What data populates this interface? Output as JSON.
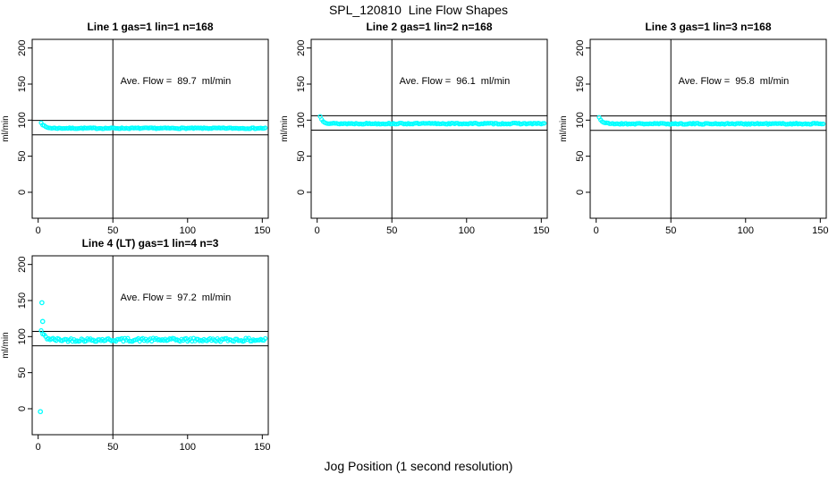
{
  "main_title": "SPL_120810  Line Flow Shapes",
  "xlabel": "Jog Position (1 second resolution)",
  "colors": {
    "point": "#00FFFF",
    "line": "#000000",
    "background": "#FFFFFF",
    "text": "#000000"
  },
  "chart_data": {
    "type": "scatter",
    "layout": "4 panels in 2x3 grid (3 top, 1 bottom-left), shared axis style",
    "point_style": "open cyan circles",
    "xlabel": "Jog Position (1 second resolution)",
    "ylabel": "ml/min",
    "shared_axes": {
      "xlim": [
        -4,
        154
      ],
      "ylim": [
        -36,
        212
      ],
      "xticks": [
        0,
        50,
        100,
        150
      ],
      "yticks": [
        0,
        50,
        100,
        150,
        200
      ],
      "vline_x": 50,
      "grid": false
    },
    "annotation_position": {
      "x": 92,
      "y": 150
    },
    "panels": [
      {
        "title": "Line 1 gas=1 lin=1 n=168",
        "annotation": "Ave. Flow =  89.7  ml/min",
        "ave_flow": 89.7,
        "n": 168,
        "hlines": [
          99.7,
          79.7
        ],
        "vline": 50,
        "series": {
          "x_start": 2,
          "x_end": 152,
          "x_step": 1,
          "start_value": 97,
          "steady_value": 88.8,
          "decay_tau": 2.0,
          "noise": 0.7,
          "seed": 7
        },
        "extra_points": []
      },
      {
        "title": "Line 2 gas=1 lin=2 n=168",
        "annotation": "Ave. Flow =  96.1  ml/min",
        "ave_flow": 96.1,
        "n": 168,
        "hlines": [
          106.1,
          86.1
        ],
        "vline": 50,
        "series": {
          "x_start": 2,
          "x_end": 152,
          "x_step": 1,
          "start_value": 105,
          "steady_value": 95.2,
          "decay_tau": 2.0,
          "noise": 0.8,
          "seed": 13
        },
        "extra_points": []
      },
      {
        "title": "Line 3 gas=1 lin=3 n=168",
        "annotation": "Ave. Flow =  95.8  ml/min",
        "ave_flow": 95.8,
        "n": 168,
        "hlines": [
          105.8,
          85.8
        ],
        "vline": 50,
        "series": {
          "x_start": 2,
          "x_end": 152,
          "x_step": 1,
          "start_value": 104,
          "steady_value": 95.0,
          "decay_tau": 2.0,
          "noise": 0.8,
          "seed": 21
        },
        "extra_points": []
      },
      {
        "title": "Line 4 (LT) gas=1 lin=4 n=3",
        "annotation": "Ave. Flow =  97.2  ml/min",
        "ave_flow": 97.2,
        "n": 3,
        "hlines": [
          107.2,
          87.2
        ],
        "vline": 50,
        "series": {
          "x_start": 2,
          "x_end": 152,
          "x_step": 1,
          "start_value": 108,
          "steady_value": 95.5,
          "decay_tau": 2.5,
          "noise": 2.4,
          "seed": 42
        },
        "extra_points": [
          [
            2.5,
            147
          ],
          [
            3,
            121
          ],
          [
            1.5,
            -4
          ]
        ]
      }
    ]
  }
}
